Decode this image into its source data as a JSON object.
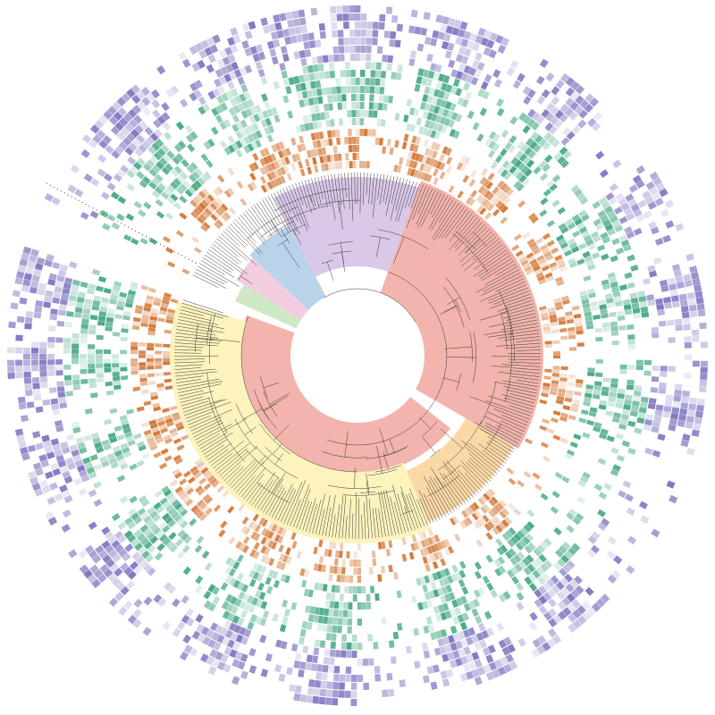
{
  "figure": {
    "type": "circular-phylogenetic-tree-with-heatmap-rings",
    "colors": {
      "background": "#ffffff",
      "clade_red": "#f2b4ac",
      "clade_yellow": "#fdf3bd",
      "clade_orange": "#fbd9a6",
      "clade_purple": "#d9c8e8",
      "clade_blue": "#b8d3ea",
      "clade_pink": "#f2cde0",
      "clade_green": "#cfe9c4",
      "ring_orange": "#d2702a",
      "ring_green": "#3fa67f",
      "ring_purple": "#7a72bf"
    },
    "clades": [
      {
        "key": "root-clade",
        "color": "clade_red",
        "start_deg": 128,
        "end_deg": 290
      },
      {
        "key": "red-outer-clade",
        "color": "clade_red",
        "start_deg": 20,
        "end_deg": 120
      },
      {
        "key": "orange-clade",
        "color": "clade_orange",
        "start_deg": 120,
        "end_deg": 157
      },
      {
        "key": "yellow-clade",
        "color": "clade_yellow",
        "start_deg": 157,
        "end_deg": 287
      },
      {
        "key": "purple-clade",
        "color": "clade_purple",
        "start_deg": 332,
        "end_deg": 20
      },
      {
        "key": "blue-clade",
        "color": "clade_blue",
        "start_deg": 313,
        "end_deg": 332
      },
      {
        "key": "pink-clade",
        "color": "clade_pink",
        "start_deg": 302,
        "end_deg": 313
      },
      {
        "key": "green-clade",
        "color": "clade_green",
        "start_deg": 294,
        "end_deg": 302
      }
    ],
    "rings": [
      {
        "key": "ring-orange",
        "color": "ring_orange"
      },
      {
        "key": "ring-green",
        "color": "ring_green"
      },
      {
        "key": "ring-purple",
        "color": "ring_purple"
      }
    ],
    "legend": null
  }
}
